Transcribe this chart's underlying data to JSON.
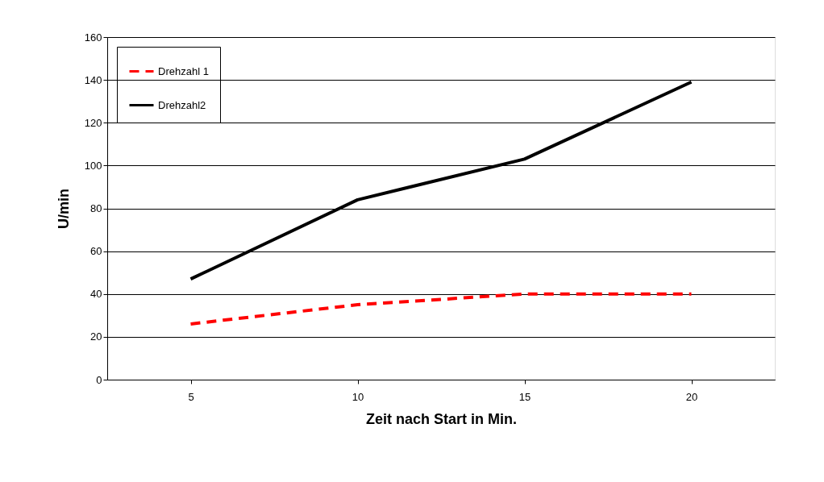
{
  "chart_data": {
    "type": "line",
    "xlabel": "Zeit nach Start in Min.",
    "ylabel": "U/min",
    "categories": [
      "5",
      "10",
      "15",
      "20"
    ],
    "series": [
      {
        "name": "Drehzahl 1",
        "color": "#ff0000",
        "line_style": "dashed",
        "values": [
          26,
          35,
          40,
          40
        ]
      },
      {
        "name": "Drehzahl2",
        "color": "#000000",
        "line_style": "solid",
        "values": [
          47,
          84,
          103,
          139
        ]
      }
    ],
    "ylim": [
      0,
      160
    ],
    "yticks": [
      0,
      20,
      40,
      60,
      80,
      100,
      120,
      140,
      160
    ],
    "grid": "y",
    "legend": "top left",
    "marker": "none"
  }
}
